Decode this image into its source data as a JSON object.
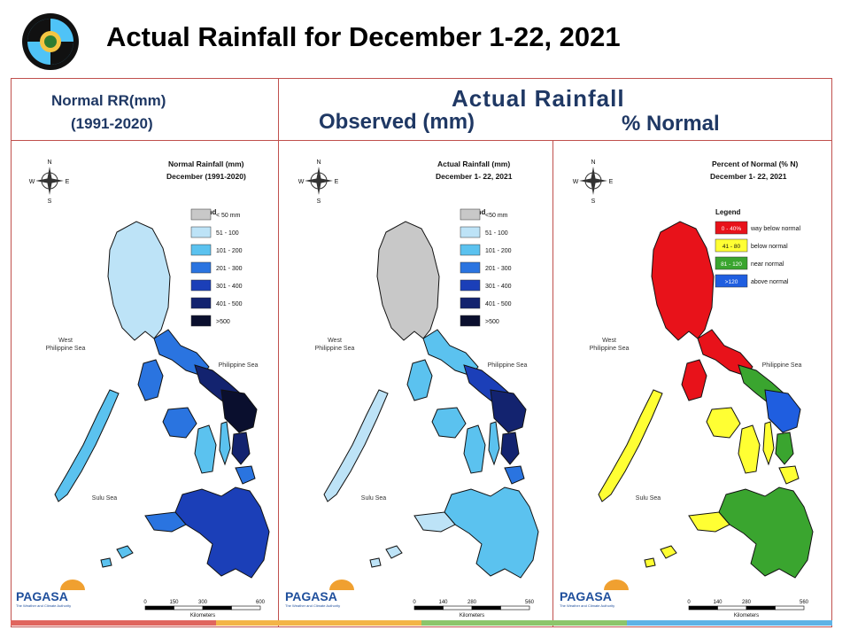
{
  "header": {
    "title": "Actual Rainfall for December 1-22, 2021"
  },
  "columns": {
    "normal_label_1": "Normal RR(mm)",
    "normal_label_2": "(1991-2020)",
    "actual_heading": "Actual Rainfall",
    "observed_label": "Observed (mm)",
    "percent_label": "% Normal"
  },
  "common": {
    "west_sea_1": "West",
    "west_sea_2": "Philippine Sea",
    "east_sea": "Philippine Sea",
    "sulu_sea": "Sulu Sea",
    "km_unit": "Kilometers",
    "brand": "PAGASA",
    "brand_sub": "The Weather and Climate Authority",
    "legend_title": "Legend",
    "compass_n": "N",
    "compass_s": "S",
    "compass_e": "E",
    "compass_w": "W"
  },
  "maps": [
    {
      "id": "normal",
      "title_1": "Normal Rainfall (mm)",
      "title_2": "December (1991-2020)",
      "scale": [
        "0",
        "150",
        "300",
        "600"
      ],
      "legend": [
        {
          "label": "< 50 mm",
          "color": "#c8c8c8"
        },
        {
          "label": "51 - 100",
          "color": "#bde3f7"
        },
        {
          "label": "101 - 200",
          "color": "#5bc2ef"
        },
        {
          "label": "201 - 300",
          "color": "#2a74e0"
        },
        {
          "label": "301 - 400",
          "color": "#1b3fb8"
        },
        {
          "label": "401 - 500",
          "color": "#13236f"
        },
        {
          "label": ">500",
          "color": "#0a0f2e"
        }
      ]
    },
    {
      "id": "actual",
      "title_1": "Actual Rainfall (mm)",
      "title_2": "December 1- 22, 2021",
      "scale": [
        "0",
        "140",
        "280",
        "560"
      ],
      "legend": [
        {
          "label": "<50 mm",
          "color": "#c8c8c8"
        },
        {
          "label": "51 - 100",
          "color": "#bde3f7"
        },
        {
          "label": "101 - 200",
          "color": "#5bc2ef"
        },
        {
          "label": "201 - 300",
          "color": "#2a74e0"
        },
        {
          "label": "301 - 400",
          "color": "#1b3fb8"
        },
        {
          "label": "401 - 500",
          "color": "#13236f"
        },
        {
          "label": ">500",
          "color": "#0a0f2e"
        }
      ]
    },
    {
      "id": "percent",
      "title_1": "Percent of Normal (% N)",
      "title_2": "December 1- 22, 2021",
      "scale": [
        "0",
        "140",
        "280",
        "560"
      ],
      "legend": [
        {
          "swatch": "0 - 40%",
          "label": "way below normal",
          "color": "#e8121a"
        },
        {
          "swatch": "41 - 80",
          "label": "below normal",
          "color": "#ffff33"
        },
        {
          "swatch": "81 - 120",
          "label": "near normal",
          "color": "#3aa52f"
        },
        {
          "swatch": ">120",
          "label": "above normal",
          "color": "#1f5ee0"
        }
      ]
    }
  ],
  "footer_colors": [
    "#e0655e",
    "#f3b447",
    "#8cc56b",
    "#5fb3e6"
  ]
}
